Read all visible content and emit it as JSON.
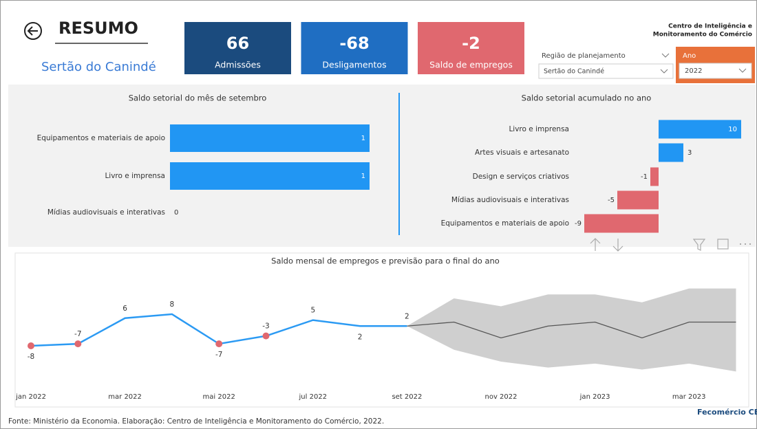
{
  "header": {
    "title": "RESUMO",
    "subtitle": "Sertão do Canindé",
    "org_name": [
      "Centro de Inteligência e",
      "Monitoramento do Comércio"
    ]
  },
  "kpis": [
    {
      "value": 66,
      "label": "Admissões",
      "color": "#1b4b7e"
    },
    {
      "value": -68,
      "label": "Desligamentos",
      "color": "#1f6ec2"
    },
    {
      "value": -2,
      "label": "Saldo de empregos",
      "color": "#e0686f"
    }
  ],
  "filters": {
    "region": {
      "label": "Região de planejamento",
      "value": "Sertão do Canindé"
    },
    "year": {
      "label": "Ano",
      "value": "2022",
      "color": "#e8713a"
    }
  },
  "chart_data": [
    {
      "type": "hbar",
      "title": "Saldo setorial do mês de setembro",
      "categories": [
        "Equipamentos e materiais de apoio",
        "Livro e imprensa",
        "Mídias audiovisuais e interativas"
      ],
      "values": [
        1,
        1,
        0
      ],
      "color": "#2196f3"
    },
    {
      "type": "hbar",
      "title": "Saldo setorial acumulado no ano",
      "categories": [
        "Livro e imprensa",
        "Artes visuais e artesanato",
        "Design e serviços criativos",
        "Mídias audiovisuais e interativas",
        "Equipamentos e materiais de apoio"
      ],
      "values": [
        10,
        3,
        -1,
        -5,
        -9
      ],
      "color": "#2196f3",
      "negative_color": "#e0686f"
    },
    {
      "type": "line",
      "title": "Saldo mensal de empregos e previsão para o final do ano",
      "categories": [
        "jan 2022",
        null,
        "mar 2022",
        null,
        "mai 2022",
        null,
        "jul 2022",
        null,
        "set 2022",
        null,
        "nov 2022",
        null,
        "jan 2023",
        null,
        "mar 2023",
        null
      ],
      "values": [
        -8,
        -7,
        6,
        8,
        -7,
        -3,
        5,
        2,
        2,
        null,
        null,
        null,
        null,
        null,
        null,
        null
      ],
      "forecast": [
        null,
        null,
        null,
        null,
        null,
        null,
        null,
        null,
        2,
        4,
        -4,
        2,
        4,
        -4,
        4,
        4
      ],
      "forecast_upper": [
        null,
        null,
        null,
        null,
        null,
        null,
        null,
        null,
        2,
        16,
        12,
        18,
        18,
        14,
        21,
        21
      ],
      "forecast_lower": [
        null,
        null,
        null,
        null,
        null,
        null,
        null,
        null,
        2,
        -10,
        -16,
        -19,
        -17,
        -20,
        -17,
        -21
      ],
      "color": "#2b9af3",
      "negative_marker_color": "#e0686f",
      "forecast_color": "#555555",
      "band_color": "#cfcfcf"
    }
  ],
  "footer": {
    "source": "Fonte: Ministério da Economia. Elaboração: Centro de Inteligência e Monitoramento do Comércio, 2022.",
    "logo": "Fecomércio CE"
  }
}
